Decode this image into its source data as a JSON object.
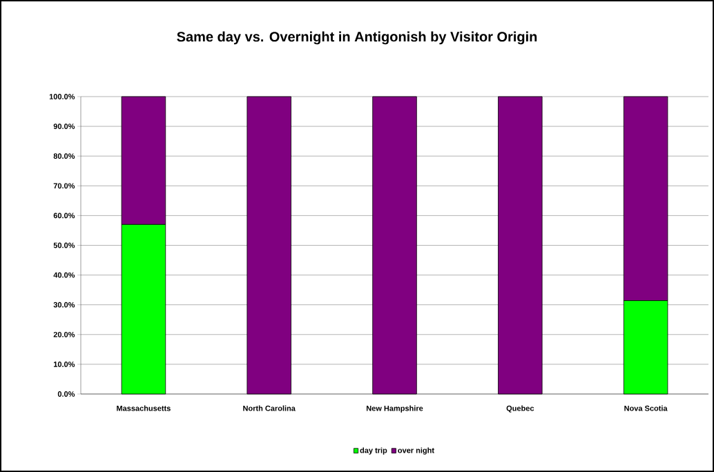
{
  "chart_data": {
    "type": "bar",
    "title": "Same day vs. Overnight in Antigonish by Visitor Origin",
    "categories": [
      "Massachusetts",
      "North Carolina",
      "New Hampshire",
      "Quebec",
      "Nova Scotia"
    ],
    "stacked": true,
    "series": [
      {
        "name": "day trip",
        "color": "#00ff00",
        "values": [
          57.0,
          0,
          0,
          0,
          31.4
        ]
      },
      {
        "name": "over night",
        "color": "#800080",
        "values": [
          43.0,
          100,
          100,
          100,
          68.6
        ]
      }
    ],
    "ylim": [
      0,
      100
    ],
    "yticks": [
      {
        "value": 0,
        "label": "0.0%"
      },
      {
        "value": 10,
        "label": "10.0%"
      },
      {
        "value": 20,
        "label": "20.0%"
      },
      {
        "value": 30,
        "label": "30.0%"
      },
      {
        "value": 40,
        "label": "40.0%"
      },
      {
        "value": 50,
        "label": "50.0%"
      },
      {
        "value": 60,
        "label": "60.0%"
      },
      {
        "value": 70,
        "label": "70.0%"
      },
      {
        "value": 80,
        "label": "80.0%"
      },
      {
        "value": 90,
        "label": "90.0%"
      },
      {
        "value": 100,
        "label": "100.0%"
      }
    ],
    "grid": "y",
    "legend": "bottom"
  }
}
